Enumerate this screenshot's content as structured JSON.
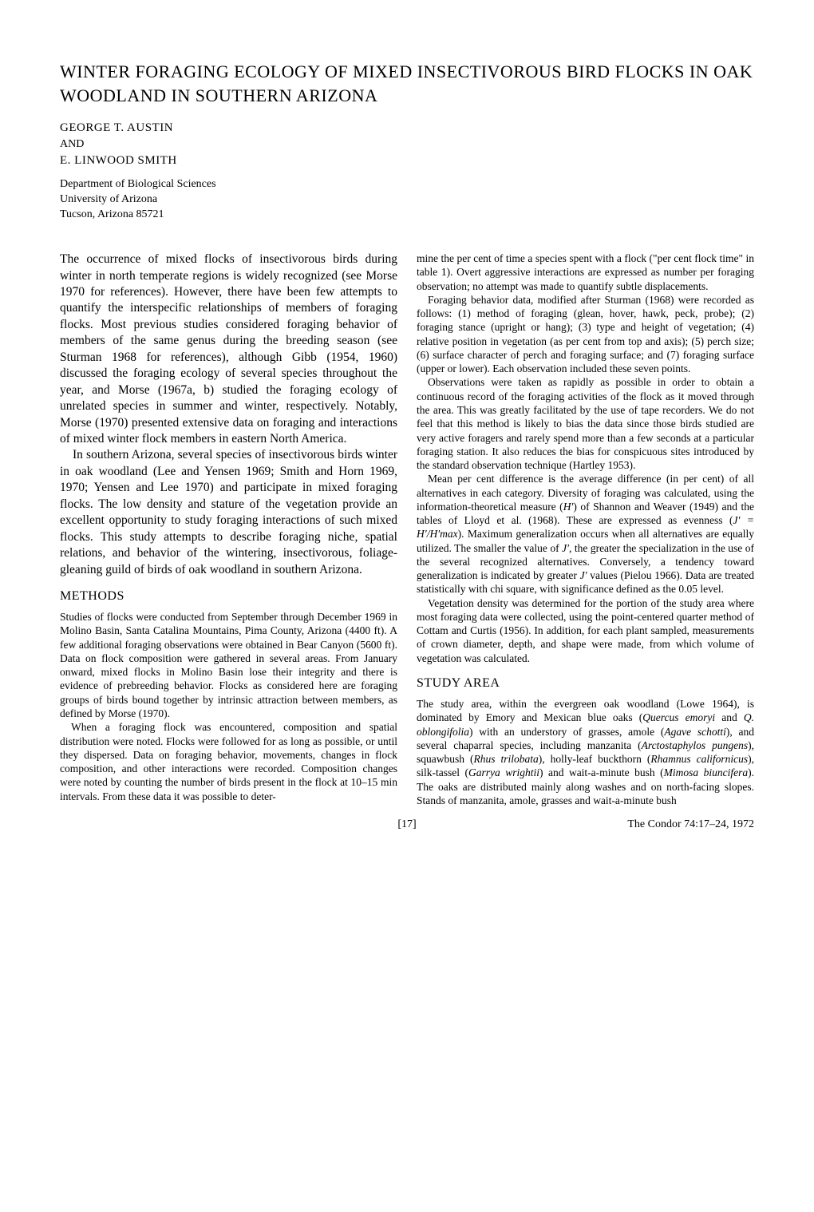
{
  "title": "WINTER FORAGING ECOLOGY OF MIXED INSECTIVOROUS BIRD FLOCKS IN OAK WOODLAND IN SOUTHERN ARIZONA",
  "authors": {
    "first": "GEORGE T. AUSTIN",
    "and": "AND",
    "second": "E. LINWOOD SMITH"
  },
  "affiliation": {
    "dept": "Department of Biological Sciences",
    "univ": "University of Arizona",
    "city": "Tucson, Arizona 85721"
  },
  "col1": {
    "p1": "The occurrence of mixed flocks of insectivorous birds during winter in north temperate regions is widely recognized (see Morse 1970 for references). However, there have been few attempts to quantify the interspecific relationships of members of foraging flocks. Most previous studies considered foraging behavior of members of the same genus during the breeding season (see Sturman 1968 for references), although Gibb (1954, 1960) discussed the foraging ecology of several species throughout the year, and Morse (1967a, b) studied the foraging ecology of unrelated species in summer and winter, respectively. Notably, Morse (1970) presented extensive data on foraging and interactions of mixed winter flock members in eastern North America.",
    "p2": "In southern Arizona, several species of insectivorous birds winter in oak woodland (Lee and Yensen 1969; Smith and Horn 1969, 1970; Yensen and Lee 1970) and participate in mixed foraging flocks. The low density and stature of the vegetation provide an excellent opportunity to study foraging interactions of such mixed flocks. This study attempts to describe foraging niche, spatial relations, and behavior of the wintering, insectivorous, foliage-gleaning guild of birds of oak woodland in southern Arizona.",
    "methods_header": "METHODS",
    "m1": "Studies of flocks were conducted from September through December 1969 in Molino Basin, Santa Catalina Mountains, Pima County, Arizona (4400 ft). A few additional foraging observations were obtained in Bear Canyon (5600 ft). Data on flock composition were gathered in several areas. From January onward, mixed flocks in Molino Basin lose their integrity and there is evidence of prebreeding behavior. Flocks as considered here are foraging groups of birds bound together by intrinsic attraction between members, as defined by Morse (1970).",
    "m2": "When a foraging flock was encountered, composition and spatial distribution were noted. Flocks were followed for as long as possible, or until they dispersed. Data on foraging behavior, movements, changes in flock composition, and other interactions were recorded. Composition changes were noted by counting the number of birds present in the flock at 10–15 min intervals. From these data it was possible to deter-"
  },
  "col2": {
    "p1": "mine the per cent of time a species spent with a flock (\"per cent flock time\" in table 1). Overt aggressive interactions are expressed as number per foraging observation; no attempt was made to quantify subtle displacements.",
    "p2": "Foraging behavior data, modified after Sturman (1968) were recorded as follows: (1) method of foraging (glean, hover, hawk, peck, probe); (2) foraging stance (upright or hang); (3) type and height of vegetation; (4) relative position in vegetation (as per cent from top and axis); (5) perch size; (6) surface character of perch and foraging surface; and (7) foraging surface (upper or lower). Each observation included these seven points.",
    "p3": "Observations were taken as rapidly as possible in order to obtain a continuous record of the foraging activities of the flock as it moved through the area. This was greatly facilitated by the use of tape recorders. We do not feel that this method is likely to bias the data since those birds studied are very active foragers and rarely spend more than a few seconds at a particular foraging station. It also reduces the bias for conspicuous sites introduced by the standard observation technique (Hartley 1953).",
    "p4a": "Mean per cent difference is the average difference (in per cent) of all alternatives in each category. Diversity of foraging was calculated, using the information-theoretical measure (",
    "p4b": ") of Shannon and Weaver (1949) and the tables of Lloyd et al. (1968). These are expressed as evenness (",
    "p4c": "). Maximum generalization occurs when all alternatives are equally utilized. The smaller the value of ",
    "p4d": ", the greater the specialization in the use of the several recognized alternatives. Conversely, a tendency toward generalization is indicated by greater ",
    "p4e": " values (Pielou 1966). Data are treated statistically with chi square, with significance defined as the 0.05 level.",
    "hprime": "H′",
    "jformula": "J′ = H′/H′max",
    "jprime": "J′",
    "p5": "Vegetation density was determined for the portion of the study area where most foraging data were collected, using the point-centered quarter method of Cottam and Curtis (1956). In addition, for each plant sampled, measurements of crown diameter, depth, and shape were made, from which volume of vegetation was calculated.",
    "study_header": "STUDY AREA",
    "s1a": "The study area, within the evergreen oak woodland (Lowe 1964), is dominated by Emory and Mexican blue oaks (",
    "s1_sp1": "Quercus emoryi",
    "s1b": " and ",
    "s1_sp2": "Q. oblongifolia",
    "s1c": ") with an understory of grasses, amole (",
    "s1_sp3": "Agave schotti",
    "s1d": "), and several chaparral species, including manzanita (",
    "s1_sp4": "Arctostaphylos pungens",
    "s1e": "), squawbush (",
    "s1_sp5": "Rhus trilobata",
    "s1f": "), holly-leaf buckthorn (",
    "s1_sp6": "Rhamnus californicus",
    "s1g": "), silk-tassel (",
    "s1_sp7": "Garrya wrightii",
    "s1h": ") and wait-a-minute bush (",
    "s1_sp8": "Mimosa biuncifera",
    "s1i": "). The oaks are distributed mainly along washes and on north-facing slopes. Stands of manzanita, amole, grasses and wait-a-minute bush"
  },
  "footer": {
    "page": "[17]",
    "citation": "The Condor 74:17–24, 1972"
  }
}
